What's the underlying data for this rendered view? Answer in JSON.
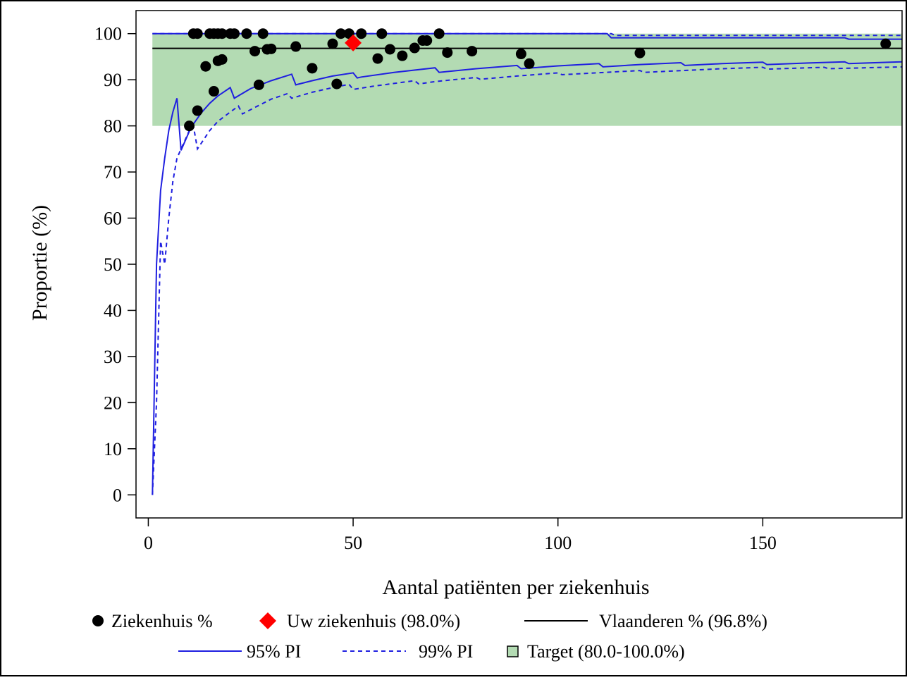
{
  "chart_data": {
    "type": "scatter",
    "xlabel": "Aantal patiënten per ziekenhuis",
    "ylabel": "Proportie (%)",
    "xlim": [
      -3,
      184
    ],
    "ylim": [
      -5,
      105
    ],
    "x_ticks": [
      0,
      50,
      100,
      150
    ],
    "y_ticks": [
      0,
      10,
      20,
      30,
      40,
      50,
      60,
      70,
      80,
      90,
      100
    ],
    "grid": false,
    "legend_position": "bottom",
    "target_band": {
      "name": "Target (80.0-100.0%)",
      "low": 80,
      "high": 100,
      "color": "#b3dbb3"
    },
    "reference_line": {
      "name": "Vlaanderen % (96.8%)",
      "value": 96.8,
      "color": "#000000"
    },
    "highlight_point": {
      "name": "Uw ziekenhuis (98.0%)",
      "x": 50,
      "y": 98.0,
      "color": "#ff0000",
      "marker": "diamond"
    },
    "series": [
      {
        "name": "Ziekenhuis %",
        "marker": "circle",
        "color": "#000000",
        "points": [
          [
            10,
            80.0
          ],
          [
            11,
            100
          ],
          [
            12,
            100
          ],
          [
            12,
            83.3
          ],
          [
            14,
            92.9
          ],
          [
            15,
            100
          ],
          [
            16,
            100
          ],
          [
            16,
            87.5
          ],
          [
            17,
            100
          ],
          [
            17,
            94.1
          ],
          [
            18,
            100
          ],
          [
            18,
            94.4
          ],
          [
            20,
            100
          ],
          [
            21,
            100
          ],
          [
            24,
            100
          ],
          [
            26,
            96.2
          ],
          [
            27,
            88.9
          ],
          [
            28,
            100
          ],
          [
            29,
            96.6
          ],
          [
            30,
            96.7
          ],
          [
            36,
            97.2
          ],
          [
            40,
            92.5
          ],
          [
            45,
            97.8
          ],
          [
            46,
            89.1
          ],
          [
            47,
            100
          ],
          [
            49,
            100
          ],
          [
            52,
            100
          ],
          [
            56,
            94.6
          ],
          [
            57,
            100
          ],
          [
            59,
            96.6
          ],
          [
            62,
            95.2
          ],
          [
            65,
            96.9
          ],
          [
            67,
            98.5
          ],
          [
            68,
            98.5
          ],
          [
            71,
            100
          ],
          [
            73,
            95.9
          ],
          [
            79,
            96.2
          ],
          [
            91,
            95.6
          ],
          [
            93,
            93.5
          ],
          [
            120,
            95.8
          ],
          [
            180,
            97.8
          ]
        ]
      }
    ],
    "bands": [
      {
        "name": "95% PI",
        "style": "solid",
        "color": "#1f1fe0",
        "upper": [
          [
            1,
            100
          ],
          [
            112,
            100
          ],
          [
            113,
            99.1
          ],
          [
            170,
            99.1
          ],
          [
            171,
            98.8
          ],
          [
            184,
            98.8
          ]
        ],
        "lower": [
          [
            1,
            0
          ],
          [
            2,
            50
          ],
          [
            3,
            66
          ],
          [
            4,
            73
          ],
          [
            5,
            79
          ],
          [
            6,
            83
          ],
          [
            7,
            86
          ],
          [
            8,
            74.7
          ],
          [
            10,
            78.8
          ],
          [
            11,
            80.4
          ],
          [
            13,
            82.9
          ],
          [
            15,
            84.9
          ],
          [
            17,
            86.5
          ],
          [
            18,
            87.1
          ],
          [
            20,
            88.3
          ],
          [
            21,
            86
          ],
          [
            25,
            88.1
          ],
          [
            30,
            89.8
          ],
          [
            35,
            91.2
          ],
          [
            36,
            88.9
          ],
          [
            40,
            89.8
          ],
          [
            45,
            90.8
          ],
          [
            50,
            91.5
          ],
          [
            51,
            90.4
          ],
          [
            52,
            90.6
          ],
          [
            60,
            91.6
          ],
          [
            70,
            92.6
          ],
          [
            71,
            91.6
          ],
          [
            80,
            92.4
          ],
          [
            90,
            93.1
          ],
          [
            91,
            92.4
          ],
          [
            100,
            93
          ],
          [
            110,
            93.5
          ],
          [
            111,
            92.8
          ],
          [
            120,
            93.3
          ],
          [
            130,
            93.7
          ],
          [
            131,
            93.1
          ],
          [
            140,
            93.5
          ],
          [
            150,
            93.8
          ],
          [
            151,
            93.3
          ],
          [
            160,
            93.6
          ],
          [
            170,
            93.9
          ],
          [
            171,
            93.5
          ],
          [
            184,
            93.9
          ]
        ]
      },
      {
        "name": "99% PI",
        "style": "dashed",
        "color": "#1f1fe0",
        "upper": [
          [
            1,
            100
          ],
          [
            113,
            100
          ],
          [
            114,
            99.6
          ],
          [
            184,
            99.6
          ]
        ],
        "lower": [
          [
            1,
            0
          ],
          [
            2,
            20
          ],
          [
            3,
            55
          ],
          [
            4,
            50
          ],
          [
            5,
            60
          ],
          [
            6,
            68
          ],
          [
            7,
            73
          ],
          [
            9,
            77
          ],
          [
            10,
            79
          ],
          [
            11,
            80
          ],
          [
            12,
            75
          ],
          [
            15,
            79
          ],
          [
            17,
            81
          ],
          [
            20,
            83
          ],
          [
            22,
            84.3
          ],
          [
            23,
            82.6
          ],
          [
            26,
            84
          ],
          [
            30,
            85.8
          ],
          [
            34,
            87
          ],
          [
            35,
            86
          ],
          [
            40,
            87.3
          ],
          [
            45,
            88.3
          ],
          [
            49,
            89
          ],
          [
            50,
            87.9
          ],
          [
            55,
            88.6
          ],
          [
            60,
            89.2
          ],
          [
            65,
            89.8
          ],
          [
            66,
            89.1
          ],
          [
            70,
            89.6
          ],
          [
            80,
            90.5
          ],
          [
            81,
            90.1
          ],
          [
            90,
            90.8
          ],
          [
            100,
            91.5
          ],
          [
            101,
            91.1
          ],
          [
            120,
            92
          ],
          [
            121,
            91.6
          ],
          [
            140,
            92.4
          ],
          [
            150,
            92.7
          ],
          [
            151,
            92.3
          ],
          [
            165,
            92.7
          ],
          [
            166,
            92.4
          ],
          [
            184,
            92.8
          ]
        ]
      }
    ],
    "legend": {
      "row1": [
        "Ziekenhuis %",
        "Uw ziekenhuis (98.0%)",
        "Vlaanderen % (96.8%)"
      ],
      "row2": [
        "95% PI",
        "99% PI",
        "Target (80.0-100.0%)"
      ]
    }
  }
}
